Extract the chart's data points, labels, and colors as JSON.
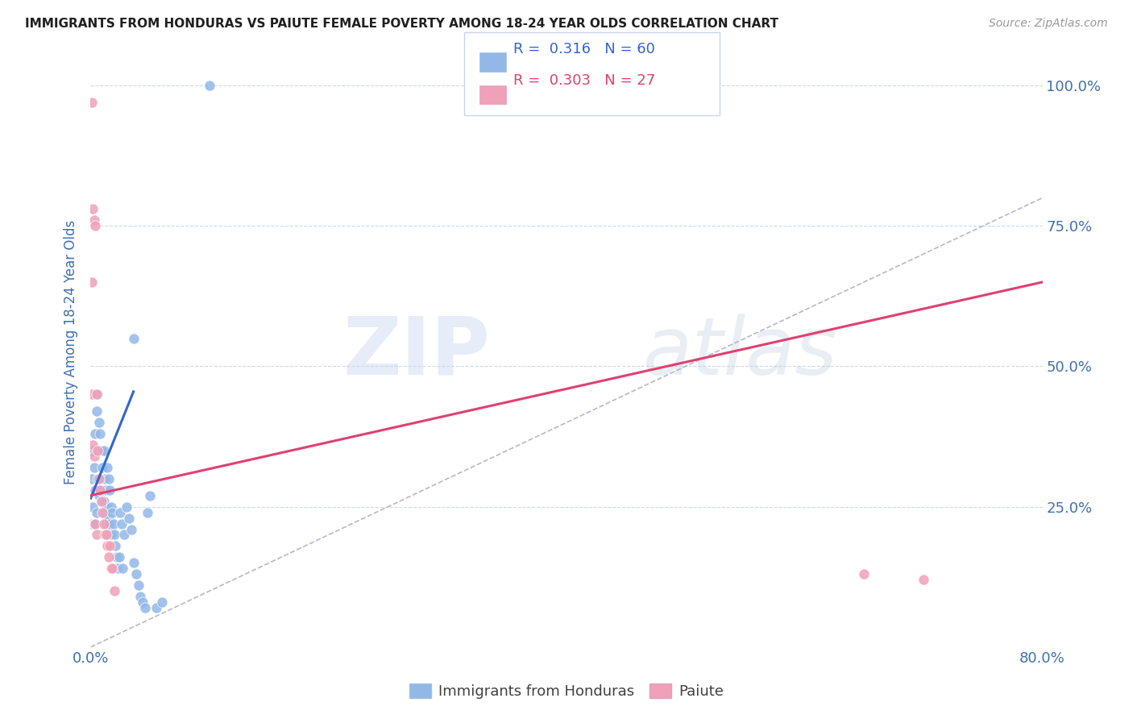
{
  "title": "IMMIGRANTS FROM HONDURAS VS PAIUTE FEMALE POVERTY AMONG 18-24 YEAR OLDS CORRELATION CHART",
  "source": "Source: ZipAtlas.com",
  "ylabel": "Female Poverty Among 18-24 Year Olds",
  "yticks_labels": [
    "100.0%",
    "75.0%",
    "50.0%",
    "25.0%"
  ],
  "ytick_vals": [
    1.0,
    0.75,
    0.5,
    0.25
  ],
  "legend_blue_r": "0.316",
  "legend_blue_n": "60",
  "legend_pink_r": "0.303",
  "legend_pink_n": "27",
  "blue_color": "#92b8e8",
  "pink_color": "#f0a0b8",
  "trend_blue_color": "#3366cc",
  "trend_pink_color": "#e04070",
  "diagonal_color": "#b8b8c8",
  "watermark_zip": "ZIP",
  "watermark_atlas": "atlas",
  "xlim": [
    0.0,
    0.8
  ],
  "ylim": [
    0.0,
    1.05
  ],
  "background_color": "#ffffff",
  "grid_color": "#d0d8e8",
  "title_color": "#202020",
  "axis_label_color": "#4070b0",
  "tick_label_color": "#4070b0",
  "blue_x": [
    0.001,
    0.001,
    0.002,
    0.002,
    0.003,
    0.003,
    0.004,
    0.004,
    0.005,
    0.005,
    0.006,
    0.006,
    0.007,
    0.007,
    0.008,
    0.008,
    0.009,
    0.009,
    0.01,
    0.01,
    0.011,
    0.011,
    0.012,
    0.012,
    0.013,
    0.013,
    0.014,
    0.014,
    0.015,
    0.015,
    0.016,
    0.016,
    0.017,
    0.017,
    0.018,
    0.019,
    0.02,
    0.021,
    0.022,
    0.023,
    0.024,
    0.025,
    0.026,
    0.027,
    0.028,
    0.03,
    0.032,
    0.034,
    0.036,
    0.038,
    0.04,
    0.042,
    0.044,
    0.046,
    0.048,
    0.05,
    0.055,
    0.06,
    0.036,
    0.1
  ],
  "blue_y": [
    0.3,
    0.22,
    0.35,
    0.25,
    0.32,
    0.22,
    0.38,
    0.28,
    0.42,
    0.24,
    0.45,
    0.3,
    0.4,
    0.27,
    0.38,
    0.28,
    0.35,
    0.26,
    0.32,
    0.28,
    0.35,
    0.26,
    0.3,
    0.24,
    0.28,
    0.22,
    0.32,
    0.25,
    0.3,
    0.23,
    0.28,
    0.22,
    0.25,
    0.2,
    0.24,
    0.22,
    0.2,
    0.18,
    0.16,
    0.14,
    0.16,
    0.24,
    0.22,
    0.14,
    0.2,
    0.25,
    0.23,
    0.21,
    0.15,
    0.13,
    0.11,
    0.09,
    0.08,
    0.07,
    0.24,
    0.27,
    0.07,
    0.08,
    0.55,
    1.0
  ],
  "pink_x": [
    0.001,
    0.001,
    0.001,
    0.002,
    0.002,
    0.003,
    0.003,
    0.004,
    0.004,
    0.005,
    0.005,
    0.006,
    0.007,
    0.008,
    0.009,
    0.01,
    0.011,
    0.012,
    0.013,
    0.014,
    0.015,
    0.016,
    0.017,
    0.018,
    0.02,
    0.65,
    0.7
  ],
  "pink_y": [
    0.97,
    0.65,
    0.45,
    0.78,
    0.36,
    0.76,
    0.34,
    0.75,
    0.22,
    0.45,
    0.2,
    0.35,
    0.3,
    0.28,
    0.26,
    0.24,
    0.22,
    0.2,
    0.2,
    0.18,
    0.16,
    0.18,
    0.14,
    0.14,
    0.1,
    0.13,
    0.12
  ],
  "blue_trend_x0": 0.0,
  "blue_trend_x1": 0.036,
  "blue_trend_y0": 0.265,
  "blue_trend_y1": 0.455,
  "pink_trend_x0": 0.0,
  "pink_trend_x1": 0.8,
  "pink_trend_y0": 0.27,
  "pink_trend_y1": 0.65
}
